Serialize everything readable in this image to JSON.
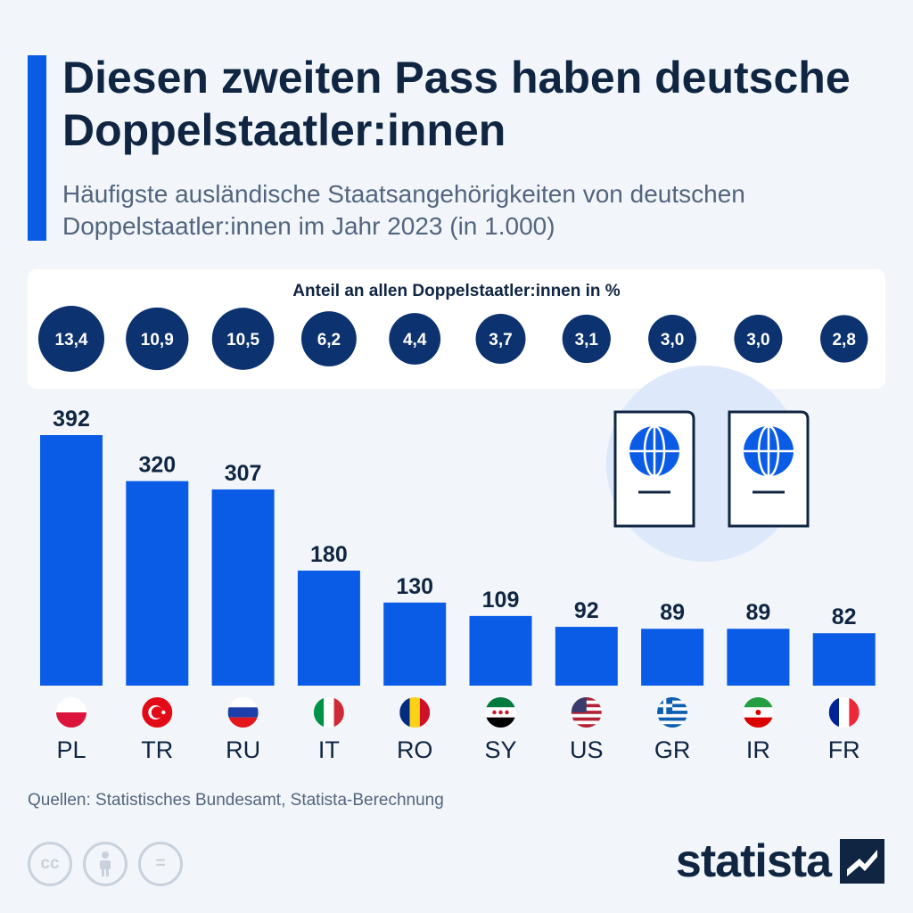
{
  "header": {
    "title": "Diesen zweiten Pass haben deutsche Doppelstaatler:innen",
    "subtitle": "Häufigste ausländische Staatsangehörigkeiten von deutschen Doppelstaatler:innen im Jahr 2023 (in 1.000)"
  },
  "share_panel": {
    "title": "Anteil an allen Doppelstaatler:innen in %"
  },
  "chart_data": {
    "type": "bar",
    "title": "Diesen zweiten Pass haben deutsche Doppelstaatler:innen",
    "subtitle": "Häufigste ausländische Staatsangehörigkeiten von deutschen Doppelstaatler:innen im Jahr 2023 (in 1.000)",
    "categories": [
      "PL",
      "TR",
      "RU",
      "IT",
      "RO",
      "SY",
      "US",
      "GR",
      "IR",
      "FR"
    ],
    "values": [
      392,
      320,
      307,
      180,
      130,
      109,
      92,
      89,
      89,
      82
    ],
    "value_labels": [
      "392",
      "320",
      "307",
      "180",
      "130",
      "109",
      "92",
      "89",
      "89",
      "82"
    ],
    "share_percent": [
      13.4,
      10.9,
      10.5,
      6.2,
      4.4,
      3.7,
      3.1,
      3.0,
      3.0,
      2.8
    ],
    "share_labels": [
      "13,4",
      "10,9",
      "10,5",
      "6,2",
      "4,4",
      "3,7",
      "3,1",
      "3,0",
      "3,0",
      "2,8"
    ],
    "flags": [
      "poland-flag",
      "turkey-flag",
      "russia-flag",
      "italy-flag",
      "romania-flag",
      "syria-flag",
      "usa-flag",
      "greece-flag",
      "iran-flag",
      "france-flag"
    ],
    "ylim": [
      0,
      392
    ],
    "grid": false,
    "legend": "none",
    "colors": {
      "bar": "#0a5ce6",
      "bubble": "#0d3270"
    }
  },
  "footer": {
    "source": "Quellen: Statistisches Bundesamt, Statista-Berechnung",
    "cc_icons": [
      {
        "icon": "cc-icon",
        "text": "cc"
      },
      {
        "icon": "attribution-icon",
        "text": ""
      },
      {
        "icon": "no-derivatives-icon",
        "text": "="
      }
    ],
    "brand": "statista"
  },
  "decor": {
    "icon": "passport-icon"
  },
  "colors": {
    "accent": "#0a5ce6",
    "text": "#0f2542",
    "muted": "#53657e",
    "background": "#f2f6fa"
  }
}
